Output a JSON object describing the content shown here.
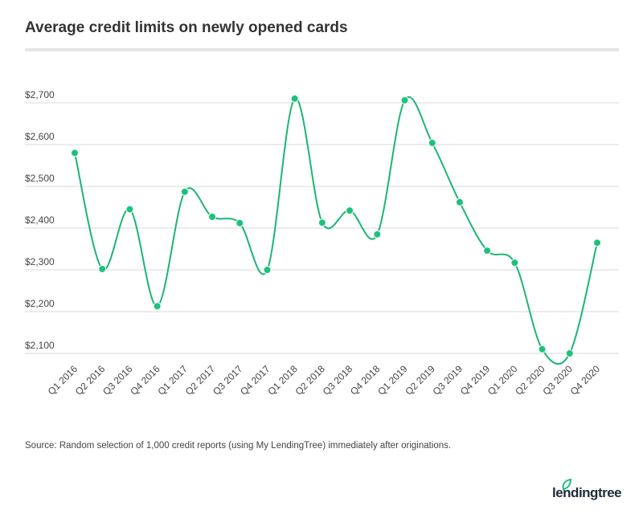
{
  "chart_data": {
    "type": "line",
    "title": "Average credit limits on newly opened cards",
    "categories": [
      "Q1 2016",
      "Q2 2016",
      "Q3 2016",
      "Q4 2016",
      "Q1 2017",
      "Q2 2017",
      "Q3 2017",
      "Q4 2017",
      "Q1 2018",
      "Q2 2018",
      "Q3 2018",
      "Q4 2018",
      "Q1 2019",
      "Q2 2019",
      "Q3 2019",
      "Q4 2019",
      "Q1 2020",
      "Q2 2020",
      "Q3 2020",
      "Q4 2020"
    ],
    "values": [
      2580,
      2302,
      2445,
      2213,
      2487,
      2427,
      2412,
      2300,
      2710,
      2413,
      2442,
      2385,
      2706,
      2604,
      2462,
      2346,
      2317,
      2110,
      2100,
      2365
    ],
    "y_ticks": [
      2100,
      2200,
      2300,
      2400,
      2500,
      2600,
      2700
    ],
    "y_tick_labels": [
      "$2,100",
      "$2,200",
      "$2,300",
      "$2,400",
      "$2,500",
      "$2,600",
      "$2,700"
    ],
    "ylim": [
      2100,
      2700
    ],
    "grid": true,
    "line_color": "#1bb673",
    "marker_color": "#1cc27a"
  },
  "source": "Source: Random selection of 1,000 credit reports (using My LendingTree) immediately after originations.",
  "logo": "lendingtree"
}
